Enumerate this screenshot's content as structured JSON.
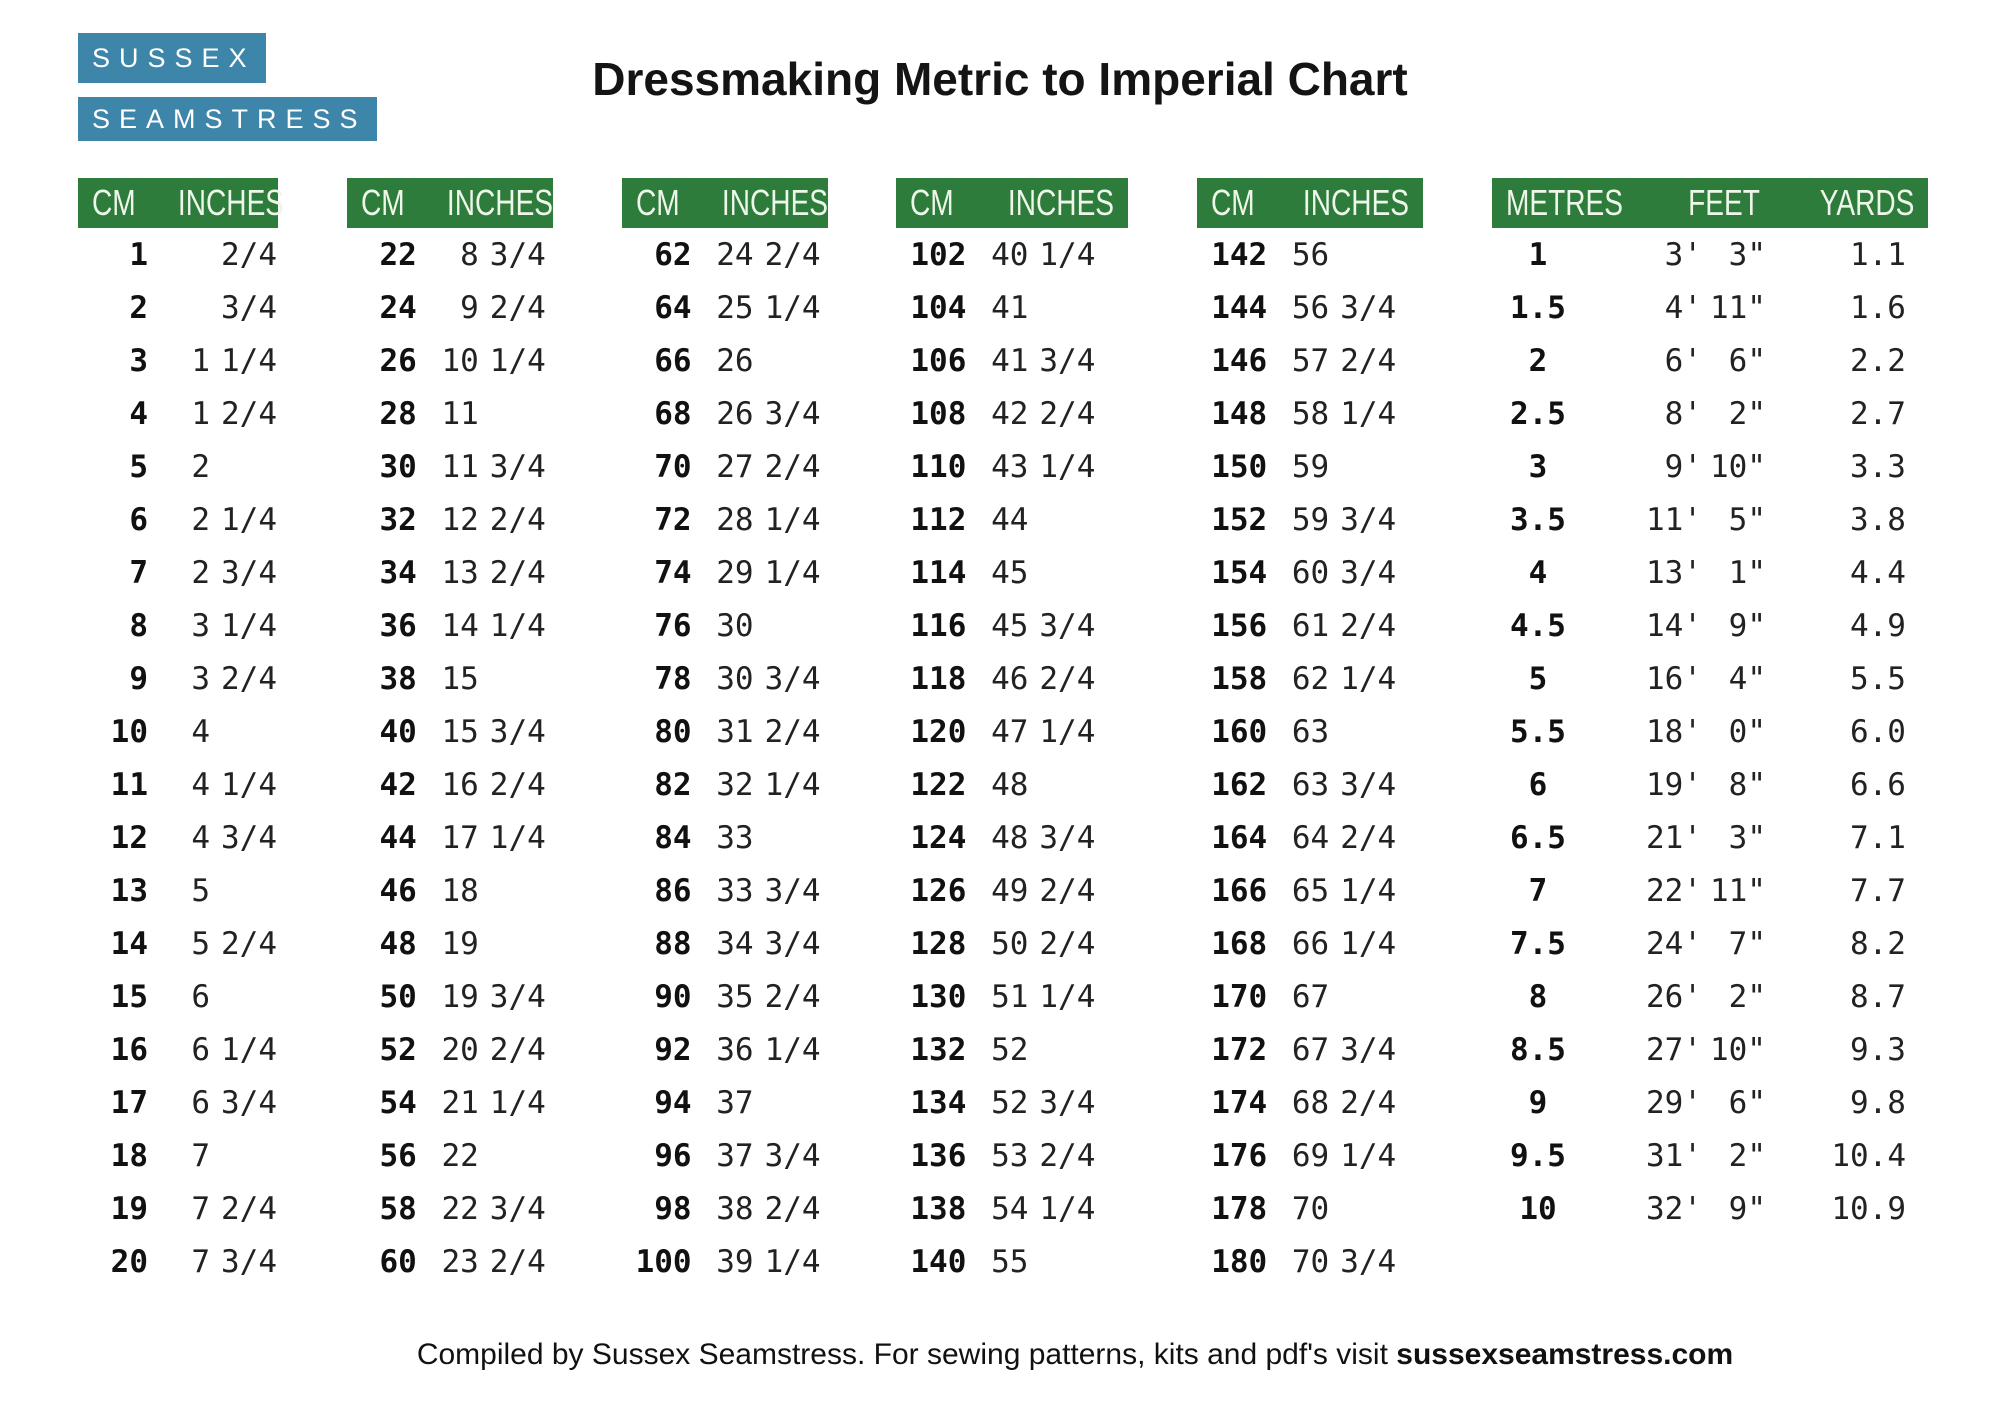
{
  "logo": {
    "line1": "SUSSEX",
    "line2": "SEAMSTRESS"
  },
  "title": "Dressmaking Metric to Imperial Chart",
  "colors": {
    "header_green": "#2e7c3c",
    "logo_blue": "#3e85aa"
  },
  "cm_tables": [
    {
      "headers": [
        "CM",
        "INCHES"
      ],
      "rows": [
        [
          "1",
          "",
          "2/4"
        ],
        [
          "2",
          "",
          "3/4"
        ],
        [
          "3",
          "1",
          "1/4"
        ],
        [
          "4",
          "1",
          "2/4"
        ],
        [
          "5",
          "2",
          ""
        ],
        [
          "6",
          "2",
          "1/4"
        ],
        [
          "7",
          "2",
          "3/4"
        ],
        [
          "8",
          "3",
          "1/4"
        ],
        [
          "9",
          "3",
          "2/4"
        ],
        [
          "10",
          "4",
          ""
        ],
        [
          "11",
          "4",
          "1/4"
        ],
        [
          "12",
          "4",
          "3/4"
        ],
        [
          "13",
          "5",
          ""
        ],
        [
          "14",
          "5",
          "2/4"
        ],
        [
          "15",
          "6",
          ""
        ],
        [
          "16",
          "6",
          "1/4"
        ],
        [
          "17",
          "6",
          "3/4"
        ],
        [
          "18",
          "7",
          ""
        ],
        [
          "19",
          "7",
          "2/4"
        ],
        [
          "20",
          "7",
          "3/4"
        ]
      ]
    },
    {
      "headers": [
        "CM",
        "INCHES"
      ],
      "rows": [
        [
          "22",
          "8",
          "3/4"
        ],
        [
          "24",
          "9",
          "2/4"
        ],
        [
          "26",
          "10",
          "1/4"
        ],
        [
          "28",
          "11",
          ""
        ],
        [
          "30",
          "11",
          "3/4"
        ],
        [
          "32",
          "12",
          "2/4"
        ],
        [
          "34",
          "13",
          "2/4"
        ],
        [
          "36",
          "14",
          "1/4"
        ],
        [
          "38",
          "15",
          ""
        ],
        [
          "40",
          "15",
          "3/4"
        ],
        [
          "42",
          "16",
          "2/4"
        ],
        [
          "44",
          "17",
          "1/4"
        ],
        [
          "46",
          "18",
          ""
        ],
        [
          "48",
          "19",
          ""
        ],
        [
          "50",
          "19",
          "3/4"
        ],
        [
          "52",
          "20",
          "2/4"
        ],
        [
          "54",
          "21",
          "1/4"
        ],
        [
          "56",
          "22",
          ""
        ],
        [
          "58",
          "22",
          "3/4"
        ],
        [
          "60",
          "23",
          "2/4"
        ]
      ]
    },
    {
      "headers": [
        "CM",
        "INCHES"
      ],
      "rows": [
        [
          "62",
          "24",
          "2/4"
        ],
        [
          "64",
          "25",
          "1/4"
        ],
        [
          "66",
          "26",
          ""
        ],
        [
          "68",
          "26",
          "3/4"
        ],
        [
          "70",
          "27",
          "2/4"
        ],
        [
          "72",
          "28",
          "1/4"
        ],
        [
          "74",
          "29",
          "1/4"
        ],
        [
          "76",
          "30",
          ""
        ],
        [
          "78",
          "30",
          "3/4"
        ],
        [
          "80",
          "31",
          "2/4"
        ],
        [
          "82",
          "32",
          "1/4"
        ],
        [
          "84",
          "33",
          ""
        ],
        [
          "86",
          "33",
          "3/4"
        ],
        [
          "88",
          "34",
          "3/4"
        ],
        [
          "90",
          "35",
          "2/4"
        ],
        [
          "92",
          "36",
          "1/4"
        ],
        [
          "94",
          "37",
          ""
        ],
        [
          "96",
          "37",
          "3/4"
        ],
        [
          "98",
          "38",
          "2/4"
        ],
        [
          "100",
          "39",
          "1/4"
        ]
      ]
    },
    {
      "headers": [
        "CM",
        "INCHES"
      ],
      "rows": [
        [
          "102",
          "40",
          "1/4"
        ],
        [
          "104",
          "41",
          ""
        ],
        [
          "106",
          "41",
          "3/4"
        ],
        [
          "108",
          "42",
          "2/4"
        ],
        [
          "110",
          "43",
          "1/4"
        ],
        [
          "112",
          "44",
          ""
        ],
        [
          "114",
          "45",
          ""
        ],
        [
          "116",
          "45",
          "3/4"
        ],
        [
          "118",
          "46",
          "2/4"
        ],
        [
          "120",
          "47",
          "1/4"
        ],
        [
          "122",
          "48",
          ""
        ],
        [
          "124",
          "48",
          "3/4"
        ],
        [
          "126",
          "49",
          "2/4"
        ],
        [
          "128",
          "50",
          "2/4"
        ],
        [
          "130",
          "51",
          "1/4"
        ],
        [
          "132",
          "52",
          ""
        ],
        [
          "134",
          "52",
          "3/4"
        ],
        [
          "136",
          "53",
          "2/4"
        ],
        [
          "138",
          "54",
          "1/4"
        ],
        [
          "140",
          "55",
          ""
        ]
      ]
    },
    {
      "headers": [
        "CM",
        "INCHES"
      ],
      "rows": [
        [
          "142",
          "56",
          ""
        ],
        [
          "144",
          "56",
          "3/4"
        ],
        [
          "146",
          "57",
          "2/4"
        ],
        [
          "148",
          "58",
          "1/4"
        ],
        [
          "150",
          "59",
          ""
        ],
        [
          "152",
          "59",
          "3/4"
        ],
        [
          "154",
          "60",
          "3/4"
        ],
        [
          "156",
          "61",
          "2/4"
        ],
        [
          "158",
          "62",
          "1/4"
        ],
        [
          "160",
          "63",
          ""
        ],
        [
          "162",
          "63",
          "3/4"
        ],
        [
          "164",
          "64",
          "2/4"
        ],
        [
          "166",
          "65",
          "1/4"
        ],
        [
          "168",
          "66",
          "1/4"
        ],
        [
          "170",
          "67",
          ""
        ],
        [
          "172",
          "67",
          "3/4"
        ],
        [
          "174",
          "68",
          "2/4"
        ],
        [
          "176",
          "69",
          "1/4"
        ],
        [
          "178",
          "70",
          ""
        ],
        [
          "180",
          "70",
          "3/4"
        ]
      ]
    }
  ],
  "metres_table": {
    "headers": [
      "METRES",
      "FEET",
      "YARDS"
    ],
    "rows": [
      [
        "1",
        "3",
        "3",
        "1.1"
      ],
      [
        "1.5",
        "4",
        "11",
        "1.6"
      ],
      [
        "2",
        "6",
        "6",
        "2.2"
      ],
      [
        "2.5",
        "8",
        "2",
        "2.7"
      ],
      [
        "3",
        "9",
        "10",
        "3.3"
      ],
      [
        "3.5",
        "11",
        "5",
        "3.8"
      ],
      [
        "4",
        "13",
        "1",
        "4.4"
      ],
      [
        "4.5",
        "14",
        "9",
        "4.9"
      ],
      [
        "5",
        "16",
        "4",
        "5.5"
      ],
      [
        "5.5",
        "18",
        "0",
        "6.0"
      ],
      [
        "6",
        "19",
        "8",
        "6.6"
      ],
      [
        "6.5",
        "21",
        "3",
        "7.1"
      ],
      [
        "7",
        "22",
        "11",
        "7.7"
      ],
      [
        "7.5",
        "24",
        "7",
        "8.2"
      ],
      [
        "8",
        "26",
        "2",
        "8.7"
      ],
      [
        "8.5",
        "27",
        "10",
        "9.3"
      ],
      [
        "9",
        "29",
        "6",
        "9.8"
      ],
      [
        "9.5",
        "31",
        "2",
        "10.4"
      ],
      [
        "10",
        "32",
        "9",
        "10.9"
      ]
    ]
  },
  "footer": {
    "prefix": "Compiled by Sussex Seamstress.  For sewing patterns, kits and pdf's visit ",
    "domain": "sussexseamstress.com"
  }
}
